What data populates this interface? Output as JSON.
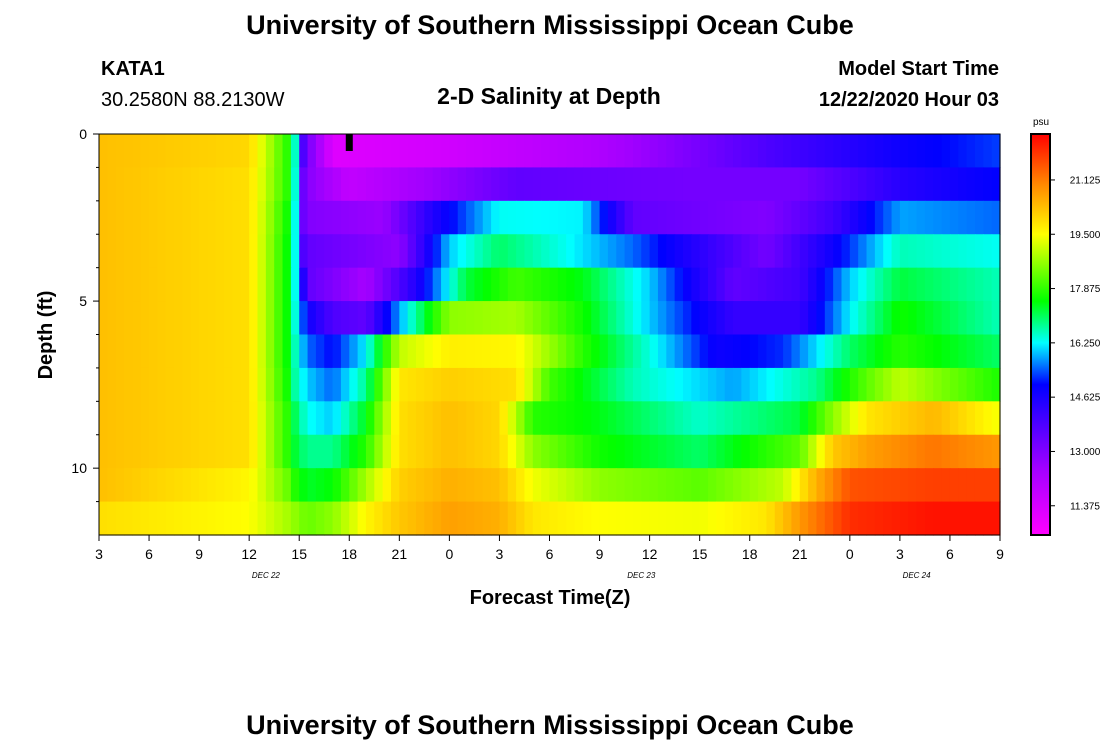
{
  "header": {
    "title": "University of Southern Mississippi Ocean Cube",
    "station": "KATA1",
    "coords": "30.2580N 88.2130W",
    "plot_title": "2-D Salinity at Depth",
    "start_label": "Model Start Time",
    "start_value": "12/22/2020 Hour 03"
  },
  "footer": {
    "title": "University of Southern Mississippi Ocean Cube"
  },
  "chart_data": {
    "type": "heatmap",
    "title": "2-D Salinity at Depth",
    "xlabel": "Forecast Time(Z)",
    "ylabel": "Depth (ft)",
    "x_range_hours": [
      0,
      54
    ],
    "x_ticks": [
      {
        "h": 0,
        "label": "3"
      },
      {
        "h": 3,
        "label": "6"
      },
      {
        "h": 6,
        "label": "9"
      },
      {
        "h": 9,
        "label": "12"
      },
      {
        "h": 12,
        "label": "15"
      },
      {
        "h": 15,
        "label": "18"
      },
      {
        "h": 18,
        "label": "21"
      },
      {
        "h": 21,
        "label": "0"
      },
      {
        "h": 24,
        "label": "3"
      },
      {
        "h": 27,
        "label": "6"
      },
      {
        "h": 30,
        "label": "9"
      },
      {
        "h": 33,
        "label": "12"
      },
      {
        "h": 36,
        "label": "15"
      },
      {
        "h": 39,
        "label": "18"
      },
      {
        "h": 42,
        "label": "21"
      },
      {
        "h": 45,
        "label": "0"
      },
      {
        "h": 48,
        "label": "3"
      },
      {
        "h": 51,
        "label": "6"
      },
      {
        "h": 54,
        "label": "9"
      }
    ],
    "date_labels": [
      {
        "h": 10,
        "label": "DEC 22"
      },
      {
        "h": 32.5,
        "label": "DEC 23"
      },
      {
        "h": 49,
        "label": "DEC 24"
      }
    ],
    "y_range_ft": [
      0,
      12
    ],
    "y_ticks": [
      0,
      5,
      10
    ],
    "y_minor_ticks": [
      1,
      2,
      3,
      4,
      6,
      7,
      8,
      9,
      11
    ],
    "current_time_marker_hour": 15,
    "colorbar": {
      "unit": "psu",
      "min": 10.5,
      "max": 22.5,
      "tick_labels": [
        "21.125",
        "19.500",
        "17.875",
        "16.250",
        "14.625",
        "13.000",
        "11.375"
      ],
      "stops": [
        {
          "v": 10.5,
          "c": "#ff00ff"
        },
        {
          "v": 12.5,
          "c": "#a100ff"
        },
        {
          "v": 15.0,
          "c": "#0000ff"
        },
        {
          "v": 16.25,
          "c": "#00ffff"
        },
        {
          "v": 17.5,
          "c": "#00ff00"
        },
        {
          "v": 19.5,
          "c": "#ffff00"
        },
        {
          "v": 21.0,
          "c": "#ff8800"
        },
        {
          "v": 22.5,
          "c": "#ff0000"
        }
      ]
    },
    "rows_depth_ft": [
      0.5,
      1.5,
      2.5,
      3.5,
      4.5,
      5.5,
      6.5,
      7.5,
      8.5,
      9.5,
      10.5,
      11.5
    ],
    "series": [
      {
        "name": "d0.5",
        "knots": [
          [
            0,
            20.3
          ],
          [
            9,
            20.0
          ],
          [
            11.3,
            17.8
          ],
          [
            11.8,
            16.4
          ],
          [
            12.3,
            13.5
          ],
          [
            14,
            11.2
          ],
          [
            21,
            11.5
          ],
          [
            30,
            12.2
          ],
          [
            40,
            13.8
          ],
          [
            48,
            14.8
          ],
          [
            54,
            15.3
          ]
        ]
      },
      {
        "name": "d1.5",
        "knots": [
          [
            0,
            20.3
          ],
          [
            9,
            19.9
          ],
          [
            11.3,
            17.8
          ],
          [
            11.8,
            16.3
          ],
          [
            12.3,
            13.0
          ],
          [
            15,
            11.8
          ],
          [
            19,
            12.4
          ],
          [
            25,
            13.5
          ],
          [
            35,
            13.2
          ],
          [
            42,
            13.2
          ],
          [
            48,
            14.4
          ],
          [
            54,
            15.0
          ]
        ]
      },
      {
        "name": "d2.5",
        "knots": [
          [
            0,
            20.3
          ],
          [
            9,
            19.9
          ],
          [
            11.3,
            17.6
          ],
          [
            11.8,
            16.2
          ],
          [
            12.3,
            13.0
          ],
          [
            17,
            12.6
          ],
          [
            20,
            14.5
          ],
          [
            24,
            16.3
          ],
          [
            29,
            16.2
          ],
          [
            32,
            13.5
          ],
          [
            40,
            13.0
          ],
          [
            44,
            14.0
          ],
          [
            48,
            15.8
          ],
          [
            54,
            15.5
          ]
        ]
      },
      {
        "name": "d3.5",
        "knots": [
          [
            0,
            20.3
          ],
          [
            9,
            19.9
          ],
          [
            11.3,
            17.5
          ],
          [
            11.8,
            16.2
          ],
          [
            12.3,
            13.5
          ],
          [
            18,
            12.8
          ],
          [
            21,
            16.0
          ],
          [
            24,
            17.0
          ],
          [
            28,
            16.3
          ],
          [
            32,
            15.5
          ],
          [
            40,
            13.2
          ],
          [
            44,
            14.8
          ],
          [
            48,
            16.6
          ],
          [
            54,
            16.3
          ]
        ]
      },
      {
        "name": "d4.5",
        "knots": [
          [
            0,
            20.3
          ],
          [
            9,
            19.9
          ],
          [
            11.3,
            17.5
          ],
          [
            11.8,
            16.2
          ],
          [
            12.5,
            13.5
          ],
          [
            16,
            12.4
          ],
          [
            19,
            14.5
          ],
          [
            22,
            17.2
          ],
          [
            25,
            18.0
          ],
          [
            29,
            17.4
          ],
          [
            33,
            16.0
          ],
          [
            38,
            13.5
          ],
          [
            42,
            14.0
          ],
          [
            45,
            16.0
          ],
          [
            48,
            17.2
          ],
          [
            54,
            16.6
          ]
        ]
      },
      {
        "name": "d5.5",
        "knots": [
          [
            0,
            20.3
          ],
          [
            9,
            19.9
          ],
          [
            11.3,
            17.5
          ],
          [
            11.8,
            16.3
          ],
          [
            12.5,
            14.8
          ],
          [
            14,
            13.8
          ],
          [
            16,
            13.5
          ],
          [
            18,
            15.8
          ],
          [
            21,
            18.6
          ],
          [
            25,
            18.8
          ],
          [
            29,
            17.6
          ],
          [
            33,
            16.0
          ],
          [
            38,
            14.2
          ],
          [
            42,
            14.2
          ],
          [
            45,
            16.2
          ],
          [
            48,
            17.6
          ],
          [
            54,
            16.6
          ]
        ]
      },
      {
        "name": "d6.5",
        "knots": [
          [
            0,
            20.3
          ],
          [
            9,
            19.9
          ],
          [
            11.3,
            17.5
          ],
          [
            11.8,
            16.5
          ],
          [
            12.5,
            15.5
          ],
          [
            14,
            15.0
          ],
          [
            16,
            16.2
          ],
          [
            18,
            19.0
          ],
          [
            21,
            19.7
          ],
          [
            25,
            19.6
          ],
          [
            29,
            17.8
          ],
          [
            33,
            16.4
          ],
          [
            37,
            14.8
          ],
          [
            41,
            15.2
          ],
          [
            45,
            17.0
          ],
          [
            48,
            17.8
          ],
          [
            54,
            17.0
          ]
        ]
      },
      {
        "name": "d7.5",
        "knots": [
          [
            0,
            20.3
          ],
          [
            9,
            19.9
          ],
          [
            11.3,
            17.6
          ],
          [
            11.8,
            16.6
          ],
          [
            12.5,
            16.0
          ],
          [
            14,
            15.5
          ],
          [
            16,
            16.8
          ],
          [
            18,
            19.8
          ],
          [
            21,
            20.1
          ],
          [
            25,
            19.9
          ],
          [
            27,
            18.0
          ],
          [
            32,
            16.6
          ],
          [
            38,
            15.8
          ],
          [
            43,
            16.8
          ],
          [
            46,
            18.2
          ],
          [
            48,
            19.0
          ],
          [
            54,
            17.7
          ]
        ]
      },
      {
        "name": "d8.5",
        "knots": [
          [
            0,
            20.3
          ],
          [
            9,
            19.9
          ],
          [
            11.3,
            17.8
          ],
          [
            11.8,
            17.0
          ],
          [
            12.5,
            16.3
          ],
          [
            14,
            16.0
          ],
          [
            16,
            17.4
          ],
          [
            18,
            19.9
          ],
          [
            21,
            20.3
          ],
          [
            24,
            20.0
          ],
          [
            26,
            17.8
          ],
          [
            30,
            17.4
          ],
          [
            36,
            16.5
          ],
          [
            42,
            17.2
          ],
          [
            44,
            18.6
          ],
          [
            46,
            19.8
          ],
          [
            50,
            20.4
          ],
          [
            54,
            19.4
          ]
        ]
      },
      {
        "name": "d9.5",
        "knots": [
          [
            0,
            20.3
          ],
          [
            9,
            19.9
          ],
          [
            11.3,
            17.8
          ],
          [
            11.8,
            17.2
          ],
          [
            12.5,
            16.8
          ],
          [
            14,
            16.8
          ],
          [
            16,
            17.8
          ],
          [
            18,
            19.9
          ],
          [
            21,
            20.3
          ],
          [
            24,
            20.0
          ],
          [
            26,
            18.6
          ],
          [
            30,
            17.6
          ],
          [
            36,
            17.0
          ],
          [
            42,
            18.2
          ],
          [
            44,
            20.2
          ],
          [
            46,
            20.7
          ],
          [
            50,
            21.2
          ],
          [
            54,
            20.8
          ]
        ]
      },
      {
        "name": "d10.5",
        "knots": [
          [
            0,
            20.3
          ],
          [
            9,
            19.6
          ],
          [
            11.3,
            18.3
          ],
          [
            11.8,
            17.7
          ],
          [
            12.5,
            17.3
          ],
          [
            14,
            17.5
          ],
          [
            16,
            18.8
          ],
          [
            18,
            20.1
          ],
          [
            21,
            20.5
          ],
          [
            24,
            20.3
          ],
          [
            26,
            19.4
          ],
          [
            30,
            18.6
          ],
          [
            36,
            18.2
          ],
          [
            41,
            19.0
          ],
          [
            43,
            20.5
          ],
          [
            45,
            21.6
          ],
          [
            50,
            21.8
          ],
          [
            54,
            21.8
          ]
        ]
      },
      {
        "name": "d11.5",
        "knots": [
          [
            0,
            19.9
          ],
          [
            9,
            19.5
          ],
          [
            11.3,
            18.8
          ],
          [
            12.5,
            18.3
          ],
          [
            14,
            18.6
          ],
          [
            16,
            19.6
          ],
          [
            18,
            20.2
          ],
          [
            21,
            20.7
          ],
          [
            24,
            20.5
          ],
          [
            26,
            19.8
          ],
          [
            30,
            19.5
          ],
          [
            36,
            19.4
          ],
          [
            40,
            19.8
          ],
          [
            42,
            20.8
          ],
          [
            45,
            22.0
          ],
          [
            50,
            22.3
          ],
          [
            54,
            22.3
          ]
        ]
      }
    ]
  }
}
